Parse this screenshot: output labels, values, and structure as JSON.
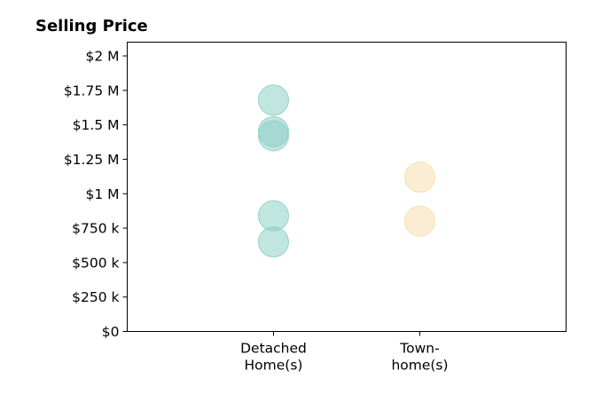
{
  "chart_data": {
    "type": "scatter",
    "title": "Selling Price",
    "xlabel": "",
    "ylabel": "",
    "categories": [
      {
        "label_lines": [
          "Detached",
          "Home(s)"
        ],
        "color": "#8ecfc4"
      },
      {
        "label_lines": [
          "Town-",
          "home(s)"
        ],
        "color": "#f5dfae"
      }
    ],
    "xlim": [
      0,
      3
    ],
    "x_positions": [
      1,
      2
    ],
    "ylim": [
      0,
      2100000
    ],
    "yticks": [
      0,
      250000,
      500000,
      750000,
      1000000,
      1250000,
      1500000,
      1750000,
      2000000
    ],
    "ytick_labels": [
      "$0",
      "$250 k",
      "$500 k",
      "$750 k",
      "$1 M",
      "$1.25 M",
      "$1.5 M",
      "$1.75 M",
      "$2 M"
    ],
    "points": [
      {
        "category": 0,
        "value": 1680000
      },
      {
        "category": 0,
        "value": 1450000
      },
      {
        "category": 0,
        "value": 1420000
      },
      {
        "category": 0,
        "value": 840000
      },
      {
        "category": 0,
        "value": 650000
      },
      {
        "category": 1,
        "value": 1120000
      },
      {
        "category": 1,
        "value": 800000
      }
    ],
    "grid": false,
    "legend": "none"
  }
}
